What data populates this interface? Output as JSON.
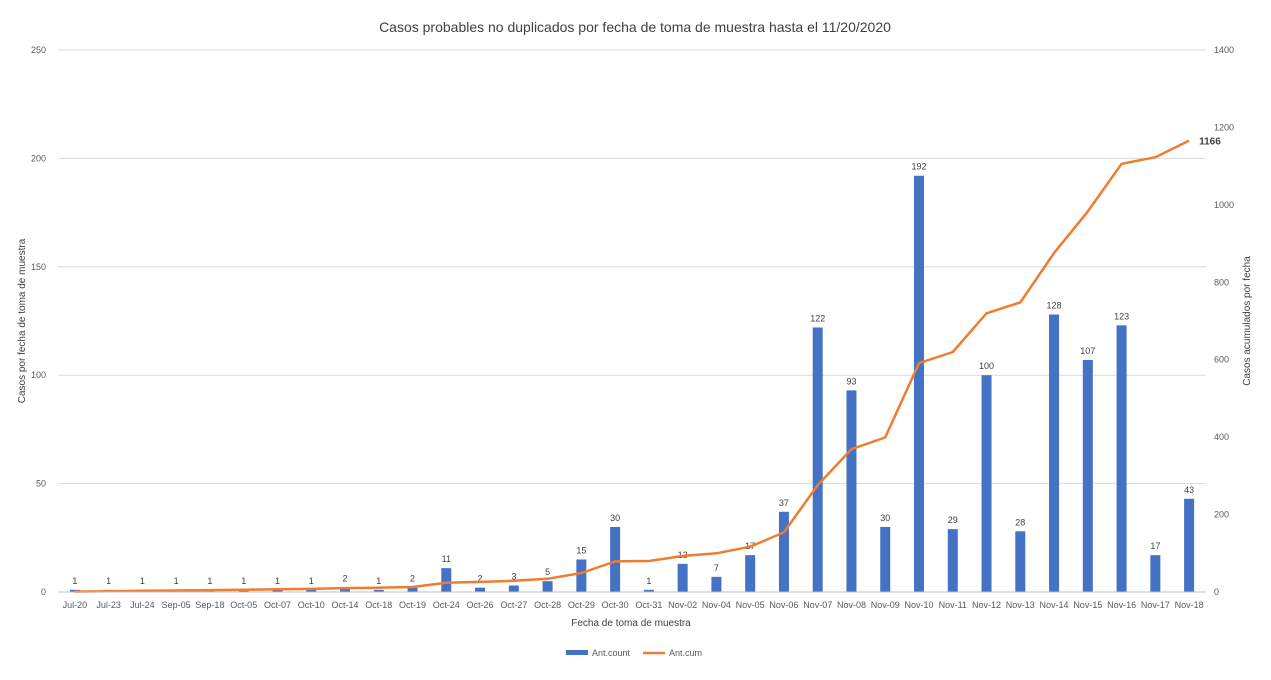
{
  "chart_data": {
    "type": "bar",
    "title": "Casos probables no duplicados por fecha de toma de muestra hasta el 11/20/2020",
    "xlabel": "Fecha de toma de muestra",
    "ylabel": "Casos por fecha de toma de muestra",
    "y2label": "Casos acumulados por fecha",
    "ylim": [
      0,
      250
    ],
    "y2lim": [
      0,
      1400
    ],
    "yticks": [
      0,
      50,
      100,
      150,
      200,
      250
    ],
    "y2ticks": [
      0,
      200,
      400,
      600,
      800,
      1000,
      1200,
      1400
    ],
    "grid": true,
    "legend": "bottom",
    "categories": [
      "Jul-20",
      "Jul-23",
      "Jul-24",
      "Sep-05",
      "Sep-18",
      "Oct-05",
      "Oct-07",
      "Oct-10",
      "Oct-14",
      "Oct-18",
      "Oct-19",
      "Oct-24",
      "Oct-26",
      "Oct-27",
      "Oct-28",
      "Oct-29",
      "Oct-30",
      "Oct-31",
      "Nov-02",
      "Nov-04",
      "Nov-05",
      "Nov-06",
      "Nov-07",
      "Nov-08",
      "Nov-09",
      "Nov-10",
      "Nov-11",
      "Nov-12",
      "Nov-13",
      "Nov-14",
      "Nov-15",
      "Nov-16",
      "Nov-17",
      "Nov-18"
    ],
    "series": [
      {
        "name": "Ant.count",
        "type": "bar",
        "axis": "left",
        "color": "#4472c4",
        "values": [
          1,
          1,
          1,
          1,
          1,
          1,
          1,
          1,
          2,
          1,
          2,
          11,
          2,
          3,
          5,
          15,
          30,
          1,
          13,
          7,
          17,
          37,
          122,
          93,
          30,
          192,
          29,
          100,
          28,
          128,
          107,
          123,
          17,
          43
        ]
      },
      {
        "name": "Ant.cum",
        "type": "line",
        "axis": "right",
        "color": "#ed7d31",
        "values": [
          1,
          2,
          3,
          4,
          5,
          6,
          7,
          8,
          10,
          11,
          13,
          24,
          26,
          29,
          34,
          49,
          79,
          80,
          93,
          100,
          117,
          154,
          276,
          369,
          399,
          591,
          620,
          720,
          748,
          876,
          983,
          1106,
          1123,
          1166
        ],
        "end_label": "1166"
      }
    ]
  }
}
